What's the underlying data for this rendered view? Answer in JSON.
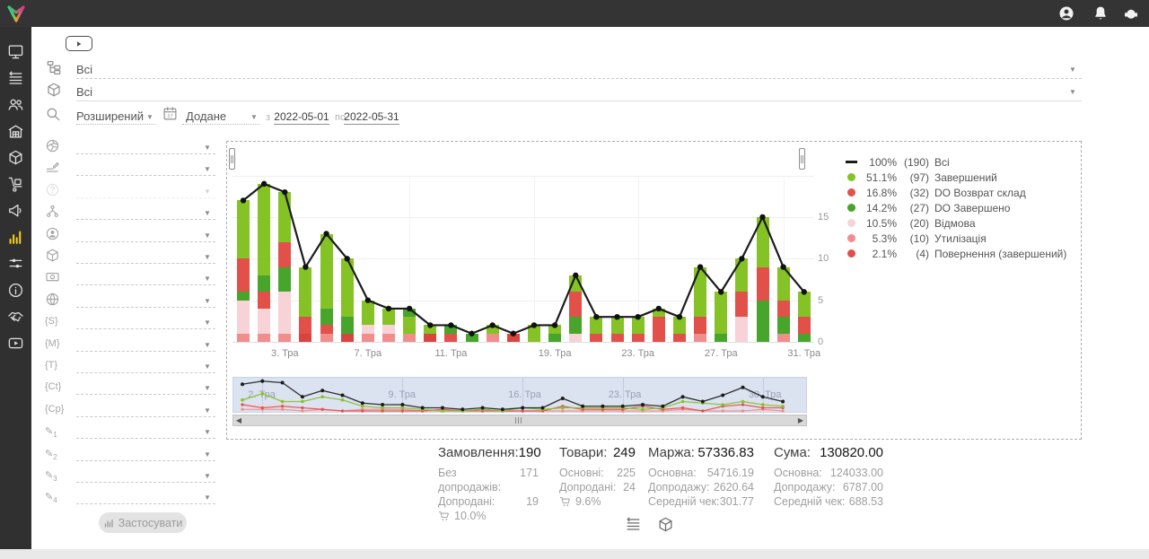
{
  "colors": {
    "active_nav": "#f7ce17",
    "brush_bg": "#dbe2f0"
  },
  "topbar": {
    "icons": [
      "account",
      "bell",
      "headset"
    ]
  },
  "sidebar": {
    "items": [
      {
        "name": "dashboard",
        "icon": "monitor"
      },
      {
        "name": "orders",
        "icon": "list-sort"
      },
      {
        "name": "customers",
        "icon": "people"
      },
      {
        "name": "warehouse",
        "icon": "warehouse"
      },
      {
        "name": "products",
        "icon": "box"
      },
      {
        "name": "supply",
        "icon": "handtruck"
      },
      {
        "name": "marketing",
        "icon": "megaphone"
      },
      {
        "name": "analytics",
        "icon": "chart-bars",
        "active": true
      },
      {
        "name": "settings",
        "icon": "sliders"
      },
      {
        "name": "info",
        "icon": "info"
      },
      {
        "name": "partners",
        "icon": "handshake"
      },
      {
        "name": "tutorials",
        "icon": "video-play"
      }
    ]
  },
  "filters": {
    "category_value": "Всі",
    "product_value": "Всі",
    "search_mode": "Розширений",
    "date_field": "Додане",
    "from_label": "з",
    "date_from": "2022-05-01",
    "to_label": "по",
    "date_to": "2022-05-31"
  },
  "filter_panel": {
    "apply_label": "Застосувати",
    "rows": [
      {
        "icon": "source"
      },
      {
        "icon": "pen-lines"
      },
      {
        "icon": "help",
        "disabled": true
      },
      {
        "icon": "hierarchy"
      },
      {
        "icon": "person-circle"
      },
      {
        "icon": "box"
      },
      {
        "icon": "money"
      },
      {
        "icon": "globe"
      },
      {
        "icon": "s-badge",
        "glyph": "{S}"
      },
      {
        "icon": "m-badge",
        "glyph": "{M}"
      },
      {
        "icon": "t-badge",
        "glyph": "{T}"
      },
      {
        "icon": "ct-badge",
        "glyph": "{Ct}"
      },
      {
        "icon": "cp-badge",
        "glyph": "{Cp}"
      },
      {
        "icon": "pencil-1",
        "glyph": "✎",
        "sub": "1"
      },
      {
        "icon": "pencil-2",
        "glyph": "✎",
        "sub": "2"
      },
      {
        "icon": "pencil-3",
        "glyph": "✎",
        "sub": "3"
      },
      {
        "icon": "pencil-4",
        "glyph": "✎",
        "sub": "4"
      }
    ]
  },
  "chart_data": {
    "type": "bar",
    "stacked": true,
    "overlay_line_series": "Всі",
    "ylim": [
      0,
      20
    ],
    "y_ticks": [
      0,
      5,
      10,
      15
    ],
    "x_unit": "Тра",
    "x_tick_indices": [
      2,
      6,
      10,
      15,
      19,
      23,
      27
    ],
    "mini_tick_labels": [
      "2. Тра",
      "9. Тра",
      "16. Тра",
      "23. Тра",
      "30. Тра"
    ],
    "mini_tick_indices": [
      1,
      8,
      14,
      19,
      26
    ],
    "series_colors": {
      "total": "#1b1b1b",
      "zav": "#85c226",
      "vozvrat": "#e2504a",
      "do_zav": "#47a52c",
      "vidmova": "#f7d2d6",
      "util": "#ef8e8d",
      "povern": "#d8453f"
    },
    "days": [
      {
        "label": "1. Тра",
        "total": 17,
        "segments": [
          [
            "util",
            1
          ],
          [
            "vidmova",
            4
          ],
          [
            "do_zav",
            1
          ],
          [
            "vozvrat",
            4
          ],
          [
            "zav",
            7
          ]
        ]
      },
      {
        "label": "2. Тра",
        "total": 19,
        "segments": [
          [
            "util",
            1
          ],
          [
            "vidmova",
            3
          ],
          [
            "vozvrat",
            2
          ],
          [
            "do_zav",
            2
          ],
          [
            "zav",
            11
          ]
        ]
      },
      {
        "label": "3. Тра",
        "total": 18,
        "segments": [
          [
            "util",
            1
          ],
          [
            "vidmova",
            5
          ],
          [
            "do_zav",
            3
          ],
          [
            "vozvrat",
            3
          ],
          [
            "zav",
            6
          ]
        ]
      },
      {
        "label": "4. Тра",
        "total": 9,
        "segments": [
          [
            "povern",
            1
          ],
          [
            "vozvrat",
            2
          ],
          [
            "zav",
            6
          ]
        ]
      },
      {
        "label": "5. Тра",
        "total": 13,
        "segments": [
          [
            "util",
            1
          ],
          [
            "vozvrat",
            1
          ],
          [
            "do_zav",
            2
          ],
          [
            "zav",
            9
          ]
        ]
      },
      {
        "label": "6. Тра",
        "total": 10,
        "segments": [
          [
            "povern",
            1
          ],
          [
            "do_zav",
            2
          ],
          [
            "zav",
            7
          ]
        ]
      },
      {
        "label": "7. Тра",
        "total": 5,
        "segments": [
          [
            "util",
            1
          ],
          [
            "vidmova",
            1
          ],
          [
            "zav",
            3
          ]
        ]
      },
      {
        "label": "8. Тра",
        "total": 4,
        "segments": [
          [
            "util",
            1
          ],
          [
            "vidmova",
            1
          ],
          [
            "zav",
            2
          ]
        ]
      },
      {
        "label": "9. Тра",
        "total": 4,
        "segments": [
          [
            "util",
            1
          ],
          [
            "zav",
            2
          ],
          [
            "do_zav",
            1
          ]
        ]
      },
      {
        "label": "10. Тра",
        "total": 2,
        "segments": [
          [
            "povern",
            1
          ],
          [
            "zav",
            1
          ]
        ]
      },
      {
        "label": "11. Тра",
        "total": 2,
        "segments": [
          [
            "vozvrat",
            1
          ],
          [
            "do_zav",
            1
          ]
        ]
      },
      {
        "label": "12. Тра",
        "total": 1,
        "segments": [
          [
            "do_zav",
            1
          ]
        ]
      },
      {
        "label": "13. Тра",
        "total": 2,
        "segments": [
          [
            "util",
            1
          ],
          [
            "zav",
            1
          ]
        ]
      },
      {
        "label": "15. Тра",
        "total": 1,
        "segments": [
          [
            "povern",
            1
          ]
        ]
      },
      {
        "label": "16. Тра",
        "total": 2,
        "segments": [
          [
            "zav",
            2
          ]
        ]
      },
      {
        "label": "19. Тра",
        "total": 2,
        "segments": [
          [
            "do_zav",
            1
          ],
          [
            "zav",
            1
          ]
        ]
      },
      {
        "label": "20. Тра",
        "total": 8,
        "segments": [
          [
            "vidmova",
            1
          ],
          [
            "do_zav",
            2
          ],
          [
            "vozvrat",
            3
          ],
          [
            "zav",
            2
          ]
        ]
      },
      {
        "label": "21. Тра",
        "total": 3,
        "segments": [
          [
            "vozvrat",
            1
          ],
          [
            "zav",
            2
          ]
        ]
      },
      {
        "label": "22. Тра",
        "total": 3,
        "segments": [
          [
            "vozvrat",
            1
          ],
          [
            "zav",
            2
          ]
        ]
      },
      {
        "label": "23. Тра",
        "total": 3,
        "segments": [
          [
            "vozvrat",
            1
          ],
          [
            "zav",
            2
          ]
        ]
      },
      {
        "label": "24. Тра",
        "total": 4,
        "segments": [
          [
            "vozvrat",
            3
          ],
          [
            "zav",
            1
          ]
        ]
      },
      {
        "label": "25. Тра",
        "total": 3,
        "segments": [
          [
            "vozvrat",
            1
          ],
          [
            "zav",
            2
          ]
        ]
      },
      {
        "label": "26. Тра",
        "total": 9,
        "segments": [
          [
            "util",
            1
          ],
          [
            "vozvrat",
            2
          ],
          [
            "zav",
            6
          ]
        ]
      },
      {
        "label": "27. Тра",
        "total": 6,
        "segments": [
          [
            "do_zav",
            1
          ],
          [
            "zav",
            5
          ]
        ]
      },
      {
        "label": "28. Тра",
        "total": 10,
        "segments": [
          [
            "vidmova",
            3
          ],
          [
            "vozvrat",
            3
          ],
          [
            "zav",
            4
          ]
        ]
      },
      {
        "label": "29. Тра",
        "total": 15,
        "segments": [
          [
            "do_zav",
            5
          ],
          [
            "vozvrat",
            4
          ],
          [
            "zav",
            6
          ]
        ]
      },
      {
        "label": "30. Тра",
        "total": 9,
        "segments": [
          [
            "util",
            1
          ],
          [
            "do_zav",
            2
          ],
          [
            "vozvrat",
            2
          ],
          [
            "zav",
            4
          ]
        ]
      },
      {
        "label": "31. Тра",
        "total": 6,
        "segments": [
          [
            "do_zav",
            1
          ],
          [
            "vozvrat",
            2
          ],
          [
            "zav",
            3
          ]
        ]
      }
    ]
  },
  "legend": {
    "items": [
      {
        "marker": "line",
        "color": "#1b1b1b",
        "pct": "100%",
        "count": "(190)",
        "label": "Всі"
      },
      {
        "marker": "dot",
        "color": "#85c226",
        "pct": "51.1%",
        "count": "(97)",
        "label": "Завершений"
      },
      {
        "marker": "dot",
        "color": "#e2504a",
        "pct": "16.8%",
        "count": "(32)",
        "label": "DO Возврат склад"
      },
      {
        "marker": "dot",
        "color": "#47a52c",
        "pct": "14.2%",
        "count": "(27)",
        "label": "DO Завершено"
      },
      {
        "marker": "dot",
        "color": "#f7d2d6",
        "pct": "10.5%",
        "count": "(20)",
        "label": "Відмова"
      },
      {
        "marker": "dot",
        "color": "#ef8e8d",
        "pct": "5.3%",
        "count": "(10)",
        "label": "Утилізація"
      },
      {
        "marker": "dot",
        "color": "#e2504a",
        "pct": "2.1%",
        "count": "(4)",
        "label": "Повернення (завершений)"
      }
    ]
  },
  "stats": {
    "columns": [
      {
        "title": "Замовлення:",
        "value": "190",
        "rows": [
          {
            "label": "Без допродажів:",
            "value": "171"
          },
          {
            "label": "Допродані:",
            "value": "19"
          }
        ],
        "cart_pct": "10.0%"
      },
      {
        "title": "Товари:",
        "value": "249",
        "rows": [
          {
            "label": "Основні:",
            "value": "225"
          },
          {
            "label": "Допродані:",
            "value": "24"
          }
        ],
        "cart_pct": "9.6%"
      },
      {
        "title": "Маржа:",
        "value": "57336.83",
        "rows": [
          {
            "label": "Основна:",
            "value": "54716.19"
          },
          {
            "label": "Допродажу:",
            "value": "2620.64"
          },
          {
            "label": "Середній чек:",
            "value": "301.77"
          }
        ]
      },
      {
        "title": "Сума:",
        "value": "130820.00",
        "rows": [
          {
            "label": "Основна:",
            "value": "124033.00"
          },
          {
            "label": "Допродажу:",
            "value": "6787.00"
          },
          {
            "label": "Середній чек:",
            "value": "688.53"
          }
        ]
      }
    ]
  },
  "view_toggles": [
    "list-sort",
    "box"
  ]
}
